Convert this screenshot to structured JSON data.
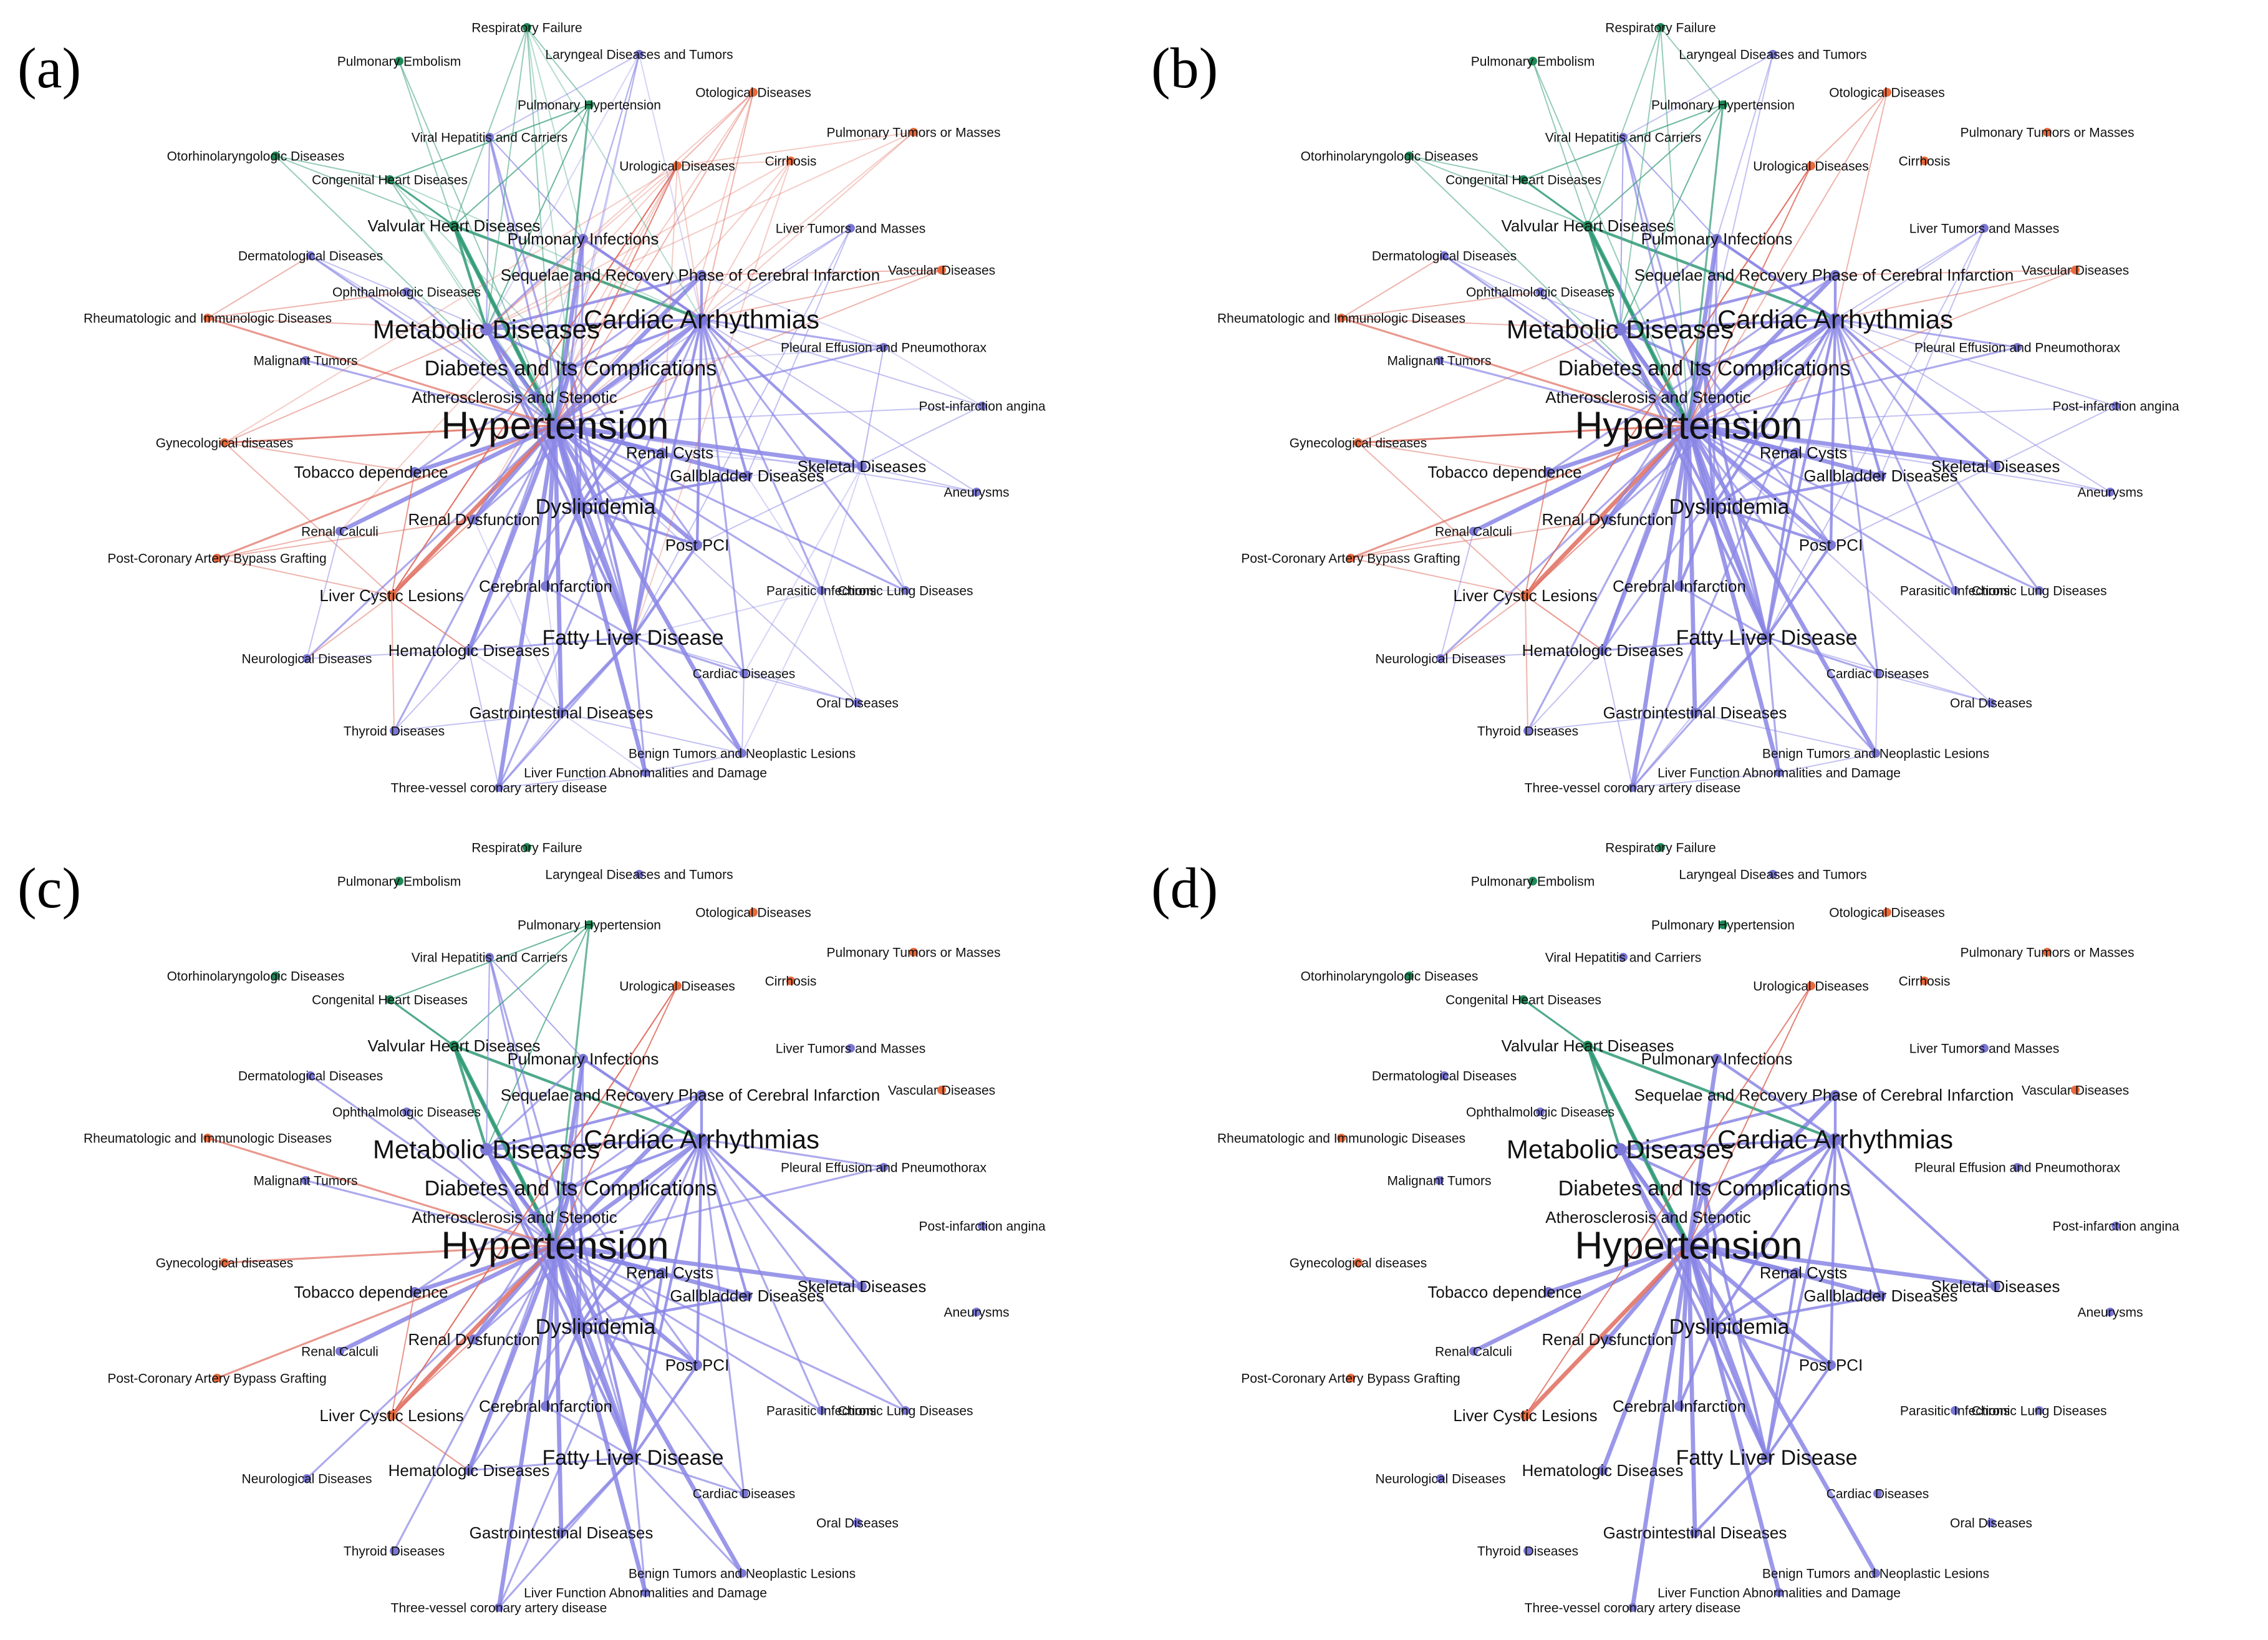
{
  "colors": {
    "green": "#1e8a57",
    "orange": "#ea6a3c",
    "purple": "#7b78d6",
    "edge_green": "#2f9a75",
    "edge_orange": "#e06c5e",
    "edge_purple": "#8a86e6",
    "text": "#111111"
  },
  "panels": [
    {
      "label": "(a)",
      "edge_density": "full"
    },
    {
      "label": "(b)",
      "edge_density": "high"
    },
    {
      "label": "(c)",
      "edge_density": "medium"
    },
    {
      "label": "(d)",
      "edge_density": "low"
    }
  ],
  "nodes": [
    {
      "id": "resp",
      "label": "Respiratory Failure",
      "group": "green",
      "size": 1
    },
    {
      "id": "pemb",
      "label": "Pulmonary Embolism",
      "group": "green",
      "size": 1
    },
    {
      "id": "laryn",
      "label": "Laryngeal Diseases and Tumors",
      "group": "purple",
      "size": 1
    },
    {
      "id": "phyp",
      "label": "Pulmonary Hypertension",
      "group": "green",
      "size": 1
    },
    {
      "id": "otol",
      "label": "Otological Diseases",
      "group": "orange",
      "size": 1
    },
    {
      "id": "ptum",
      "label": "Pulmonary Tumors or Masses",
      "group": "orange",
      "size": 1
    },
    {
      "id": "otorh",
      "label": "Otorhinolaryngologic Diseases",
      "group": "green",
      "size": 1
    },
    {
      "id": "viral",
      "label": "Viral Hepatitis and Carriers",
      "group": "purple",
      "size": 1
    },
    {
      "id": "cong",
      "label": "Congenital Heart Diseases",
      "group": "green",
      "size": 1
    },
    {
      "id": "urol",
      "label": "Urological Diseases",
      "group": "orange",
      "size": 1
    },
    {
      "id": "cirr",
      "label": "Cirrhosis",
      "group": "orange",
      "size": 1
    },
    {
      "id": "valv",
      "label": "Valvular Heart Diseases",
      "group": "green",
      "size": 2
    },
    {
      "id": "pinf",
      "label": "Pulmonary Infections",
      "group": "purple",
      "size": 2
    },
    {
      "id": "ltum",
      "label": "Liver Tumors and Masses",
      "group": "purple",
      "size": 1
    },
    {
      "id": "derm",
      "label": "Dermatological Diseases",
      "group": "purple",
      "size": 1
    },
    {
      "id": "seq",
      "label": "Sequelae and Recovery Phase of Cerebral Infarction",
      "group": "purple",
      "size": 2
    },
    {
      "id": "vasc",
      "label": "Vascular Diseases",
      "group": "orange",
      "size": 1
    },
    {
      "id": "ophth",
      "label": "Ophthalmologic Diseases",
      "group": "purple",
      "size": 1
    },
    {
      "id": "rheum",
      "label": "Rheumatologic and Immunologic Diseases",
      "group": "orange",
      "size": 1
    },
    {
      "id": "metab",
      "label": "Metabolic Diseases",
      "group": "purple",
      "size": 4
    },
    {
      "id": "card",
      "label": "Cardiac Arrhythmias",
      "group": "purple",
      "size": 4
    },
    {
      "id": "malig",
      "label": "Malignant Tumors",
      "group": "purple",
      "size": 1
    },
    {
      "id": "pleur",
      "label": "Pleural Effusion and Pneumothorax",
      "group": "purple",
      "size": 1
    },
    {
      "id": "diab",
      "label": "Diabetes and Its Complications",
      "group": "purple",
      "size": 3
    },
    {
      "id": "ather",
      "label": "Atherosclerosis and Stenotic",
      "group": "purple",
      "size": 2
    },
    {
      "id": "postinf",
      "label": "Post-infarction angina",
      "group": "purple",
      "size": 1
    },
    {
      "id": "hyper",
      "label": "Hypertension",
      "group": "purple",
      "size": 6
    },
    {
      "id": "gyn",
      "label": "Gynecological diseases",
      "group": "orange",
      "size": 1
    },
    {
      "id": "renalc",
      "label": "Renal Cysts",
      "group": "purple",
      "size": 2
    },
    {
      "id": "skel",
      "label": "Skeletal Diseases",
      "group": "purple",
      "size": 2
    },
    {
      "id": "tob",
      "label": "Tobacco dependence",
      "group": "purple",
      "size": 2
    },
    {
      "id": "gall",
      "label": "Gallbladder Diseases",
      "group": "purple",
      "size": 2
    },
    {
      "id": "aneur",
      "label": "Aneurysms",
      "group": "purple",
      "size": 1
    },
    {
      "id": "dysl",
      "label": "Dyslipidemia",
      "group": "purple",
      "size": 3
    },
    {
      "id": "renald",
      "label": "Renal Dysfunction",
      "group": "purple",
      "size": 2
    },
    {
      "id": "rcalc",
      "label": "Renal Calculi",
      "group": "purple",
      "size": 1
    },
    {
      "id": "ppci",
      "label": "Post PCI",
      "group": "purple",
      "size": 2
    },
    {
      "id": "cabg",
      "label": "Post-Coronary Artery Bypass Grafting",
      "group": "orange",
      "size": 1
    },
    {
      "id": "paras",
      "label": "Parasitic Infections",
      "group": "purple",
      "size": 1
    },
    {
      "id": "chron",
      "label": "Chronic Lung Diseases",
      "group": "purple",
      "size": 1
    },
    {
      "id": "lcyst",
      "label": "Liver Cystic Lesions",
      "group": "orange",
      "size": 2
    },
    {
      "id": "cereb",
      "label": "Cerebral Infarction",
      "group": "purple",
      "size": 2
    },
    {
      "id": "fatty",
      "label": "Fatty Liver Disease",
      "group": "purple",
      "size": 3
    },
    {
      "id": "neuro",
      "label": "Neurological Diseases",
      "group": "purple",
      "size": 1
    },
    {
      "id": "hema",
      "label": "Hematologic Diseases",
      "group": "purple",
      "size": 2
    },
    {
      "id": "cardd",
      "label": "Cardiac Diseases",
      "group": "purple",
      "size": 1
    },
    {
      "id": "oral",
      "label": "Oral Diseases",
      "group": "purple",
      "size": 1
    },
    {
      "id": "thyr",
      "label": "Thyroid Diseases",
      "group": "purple",
      "size": 1
    },
    {
      "id": "gastro",
      "label": "Gastrointestinal Diseases",
      "group": "purple",
      "size": 2
    },
    {
      "id": "benign",
      "label": "Benign Tumors and Neoplastic Lesions",
      "group": "purple",
      "size": 1
    },
    {
      "id": "lfunc",
      "label": "Liver Function Abnormalities and Damage",
      "group": "purple",
      "size": 1
    },
    {
      "id": "three",
      "label": "Three-vessel coronary artery disease",
      "group": "purple",
      "size": 1
    }
  ]
}
